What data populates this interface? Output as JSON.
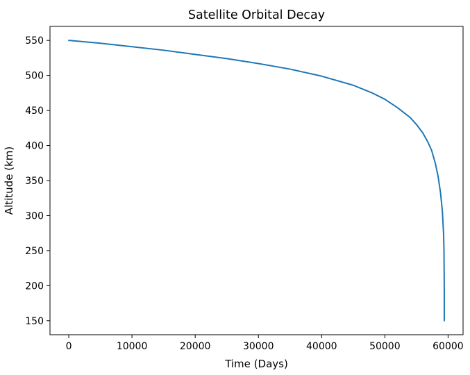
{
  "chart_data": {
    "type": "line",
    "title": "Satellite Orbital Decay",
    "xlabel": "Time (Days)",
    "ylabel": "Altitude (km)",
    "xlim": [
      -2970,
      62370
    ],
    "ylim": [
      130,
      570
    ],
    "x_ticks": [
      0,
      10000,
      20000,
      30000,
      40000,
      50000,
      60000
    ],
    "x_tick_labels": [
      "0",
      "10000",
      "20000",
      "30000",
      "40000",
      "50000",
      "60000"
    ],
    "y_ticks": [
      150,
      200,
      250,
      300,
      350,
      400,
      450,
      500,
      550
    ],
    "y_tick_labels": [
      "150",
      "200",
      "250",
      "300",
      "350",
      "400",
      "450",
      "500",
      "550"
    ],
    "grid": false,
    "series": [
      {
        "color": "#1f77b4",
        "x": [
          0,
          5000,
          10000,
          15000,
          20000,
          25000,
          30000,
          35000,
          40000,
          45000,
          48000,
          50000,
          52000,
          54000,
          55000,
          56000,
          56800,
          57400,
          58000,
          58400,
          58800,
          59100,
          59300,
          59350,
          59380,
          59400,
          59400
        ],
        "y": [
          550,
          546,
          541,
          536,
          530,
          524,
          517,
          509,
          499,
          486,
          475,
          466,
          454,
          440,
          430,
          418,
          405,
          393,
          374,
          357,
          333,
          306,
          272,
          250,
          220,
          190,
          150
        ]
      }
    ]
  }
}
